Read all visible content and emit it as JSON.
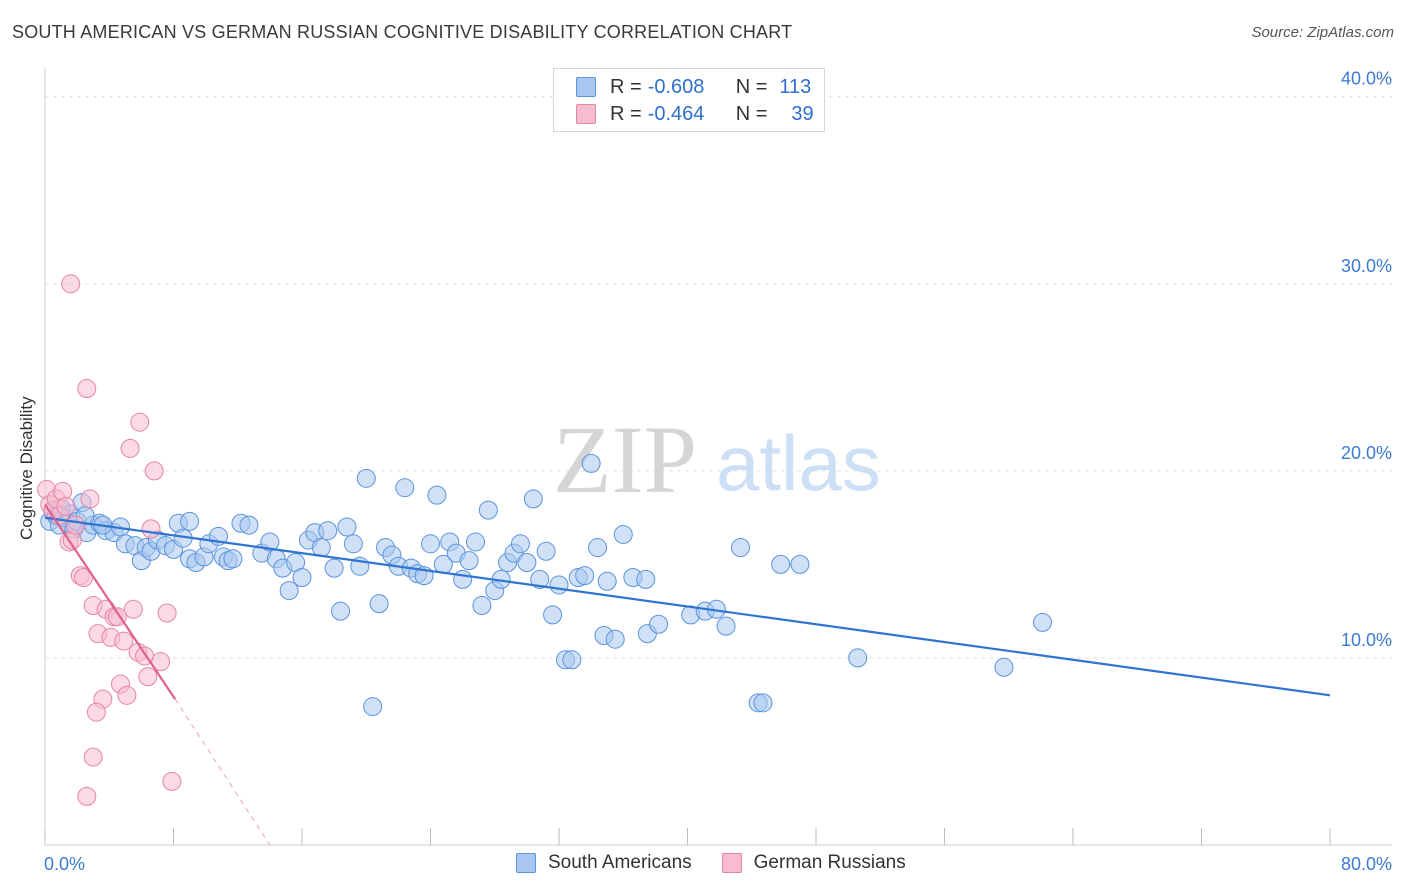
{
  "title": "SOUTH AMERICAN VS GERMAN RUSSIAN COGNITIVE DISABILITY CORRELATION CHART",
  "source": "Source: ZipAtlas.com",
  "watermark": {
    "zip": "ZIP",
    "atlas": "atlas"
  },
  "legend_stats": [
    {
      "r_label": "R =",
      "r_value": "-0.608",
      "n_label": "N =",
      "n_value": "113"
    },
    {
      "r_label": "R =",
      "r_value": "-0.464",
      "n_label": "N =",
      "n_value": "39"
    }
  ],
  "colors": {
    "blue_fill": "#a9c8f0",
    "blue_stroke": "#5b93dd",
    "blue_line": "#2f74d0",
    "pink_fill": "#f7bcd0",
    "pink_stroke": "#e585a6",
    "pink_line": "#e0608e",
    "axis_text": "#3b7bd4",
    "grid": "#e2e2e2"
  },
  "chart_data": {
    "type": "scatter",
    "title": "SOUTH AMERICAN VS GERMAN RUSSIAN COGNITIVE DISABILITY CORRELATION CHART",
    "xlabel": "",
    "ylabel": "Cognitive Disability",
    "xlim": [
      0,
      80
    ],
    "ylim": [
      0,
      41
    ],
    "x_tick_labels": [
      "0.0%",
      "80.0%"
    ],
    "y_ticks": [
      10,
      20,
      30,
      40
    ],
    "y_tick_labels": [
      "10.0%",
      "20.0%",
      "30.0%",
      "40.0%"
    ],
    "legend_position": "bottom-center",
    "series": [
      {
        "name": "South Americans",
        "color": "#5b93dd",
        "trend": {
          "x": [
            0,
            80
          ],
          "y": [
            17.5,
            8.0
          ]
        },
        "points": [
          [
            0.3,
            17.3
          ],
          [
            0.5,
            17.8
          ],
          [
            0.7,
            17.6
          ],
          [
            0.9,
            17.1
          ],
          [
            1.0,
            18.0
          ],
          [
            1.2,
            17.5
          ],
          [
            1.4,
            17.2
          ],
          [
            1.6,
            17.7
          ],
          [
            1.8,
            16.9
          ],
          [
            2.0,
            17.3
          ],
          [
            2.3,
            18.3
          ],
          [
            2.6,
            16.7
          ],
          [
            3.0,
            17.1
          ],
          [
            3.4,
            17.2
          ],
          [
            3.8,
            16.8
          ],
          [
            4.3,
            16.7
          ],
          [
            4.7,
            17.0
          ],
          [
            5.0,
            16.1
          ],
          [
            5.6,
            16.0
          ],
          [
            6.0,
            15.2
          ],
          [
            6.3,
            15.9
          ],
          [
            6.6,
            15.7
          ],
          [
            7.0,
            16.3
          ],
          [
            7.5,
            16.0
          ],
          [
            8.0,
            15.8
          ],
          [
            8.3,
            17.2
          ],
          [
            8.6,
            16.4
          ],
          [
            9.0,
            17.3
          ],
          [
            9.0,
            15.3
          ],
          [
            9.4,
            15.1
          ],
          [
            9.9,
            15.4
          ],
          [
            10.2,
            16.1
          ],
          [
            10.8,
            16.5
          ],
          [
            11.1,
            15.4
          ],
          [
            11.4,
            15.2
          ],
          [
            11.7,
            15.3
          ],
          [
            12.2,
            17.2
          ],
          [
            12.7,
            17.1
          ],
          [
            13.5,
            15.6
          ],
          [
            14.0,
            16.2
          ],
          [
            14.4,
            15.3
          ],
          [
            14.8,
            14.8
          ],
          [
            15.2,
            13.6
          ],
          [
            15.6,
            15.1
          ],
          [
            16.0,
            14.3
          ],
          [
            16.4,
            16.3
          ],
          [
            16.8,
            16.7
          ],
          [
            17.2,
            15.9
          ],
          [
            17.6,
            16.8
          ],
          [
            18.0,
            14.8
          ],
          [
            18.4,
            12.5
          ],
          [
            18.8,
            17.0
          ],
          [
            19.2,
            16.1
          ],
          [
            19.6,
            14.9
          ],
          [
            20.0,
            19.6
          ],
          [
            20.4,
            7.4
          ],
          [
            20.8,
            12.9
          ],
          [
            21.2,
            15.9
          ],
          [
            21.6,
            15.5
          ],
          [
            22.0,
            14.9
          ],
          [
            22.4,
            19.1
          ],
          [
            22.8,
            14.8
          ],
          [
            23.2,
            14.5
          ],
          [
            23.6,
            14.4
          ],
          [
            24.0,
            16.1
          ],
          [
            24.4,
            18.7
          ],
          [
            24.8,
            15.0
          ],
          [
            25.2,
            16.2
          ],
          [
            25.6,
            15.6
          ],
          [
            26.0,
            14.2
          ],
          [
            26.4,
            15.2
          ],
          [
            26.8,
            16.2
          ],
          [
            27.2,
            12.8
          ],
          [
            27.6,
            17.9
          ],
          [
            28.0,
            13.6
          ],
          [
            28.4,
            14.2
          ],
          [
            28.8,
            15.1
          ],
          [
            29.2,
            15.6
          ],
          [
            29.6,
            16.1
          ],
          [
            30.0,
            15.1
          ],
          [
            30.4,
            18.5
          ],
          [
            30.8,
            14.2
          ],
          [
            31.2,
            15.7
          ],
          [
            31.6,
            12.3
          ],
          [
            32.0,
            13.9
          ],
          [
            32.4,
            9.9
          ],
          [
            32.8,
            9.9
          ],
          [
            33.2,
            14.3
          ],
          [
            33.6,
            14.4
          ],
          [
            34.0,
            20.4
          ],
          [
            34.4,
            15.9
          ],
          [
            34.8,
            11.2
          ],
          [
            36.0,
            16.6
          ],
          [
            36.6,
            14.3
          ],
          [
            37.5,
            11.3
          ],
          [
            38.2,
            11.8
          ],
          [
            37.4,
            14.2
          ],
          [
            35.5,
            11.0
          ],
          [
            35.0,
            14.1
          ],
          [
            40.2,
            12.3
          ],
          [
            41.1,
            12.5
          ],
          [
            42.4,
            11.7
          ],
          [
            43.3,
            15.9
          ],
          [
            45.8,
            15.0
          ],
          [
            47.0,
            15.0
          ],
          [
            41.8,
            12.6
          ],
          [
            44.4,
            7.6
          ],
          [
            44.7,
            7.6
          ],
          [
            50.6,
            10.0
          ],
          [
            59.7,
            9.5
          ],
          [
            62.1,
            11.9
          ],
          [
            2.5,
            17.6
          ],
          [
            3.6,
            17.1
          ]
        ]
      },
      {
        "name": "German Russians",
        "color": "#e585a6",
        "trend": {
          "x": [
            0,
            8.1
          ],
          "y": [
            18.2,
            7.8
          ]
        },
        "trend_dashed": {
          "x": [
            8.1,
            14.0
          ],
          "y": [
            7.8,
            0.0
          ]
        },
        "points": [
          [
            0.1,
            19.0
          ],
          [
            0.3,
            18.2
          ],
          [
            0.5,
            17.9
          ],
          [
            0.7,
            18.5
          ],
          [
            0.9,
            17.6
          ],
          [
            1.1,
            18.9
          ],
          [
            1.3,
            18.1
          ],
          [
            1.5,
            16.2
          ],
          [
            1.7,
            16.3
          ],
          [
            1.9,
            17.1
          ],
          [
            2.2,
            14.4
          ],
          [
            2.4,
            14.3
          ],
          [
            1.6,
            30.0
          ],
          [
            2.6,
            24.4
          ],
          [
            2.8,
            18.5
          ],
          [
            3.0,
            12.8
          ],
          [
            3.3,
            11.3
          ],
          [
            3.6,
            7.8
          ],
          [
            3.8,
            12.6
          ],
          [
            4.1,
            11.1
          ],
          [
            4.3,
            12.2
          ],
          [
            4.5,
            12.2
          ],
          [
            4.7,
            8.6
          ],
          [
            4.9,
            10.9
          ],
          [
            5.1,
            8.0
          ],
          [
            5.3,
            21.2
          ],
          [
            5.5,
            12.6
          ],
          [
            5.8,
            10.3
          ],
          [
            5.9,
            22.6
          ],
          [
            6.2,
            10.1
          ],
          [
            6.4,
            9.0
          ],
          [
            6.6,
            16.9
          ],
          [
            6.8,
            20.0
          ],
          [
            7.2,
            9.8
          ],
          [
            7.6,
            12.4
          ],
          [
            7.9,
            3.4
          ],
          [
            3.0,
            4.7
          ],
          [
            3.2,
            7.1
          ],
          [
            2.6,
            2.6
          ]
        ]
      }
    ]
  }
}
